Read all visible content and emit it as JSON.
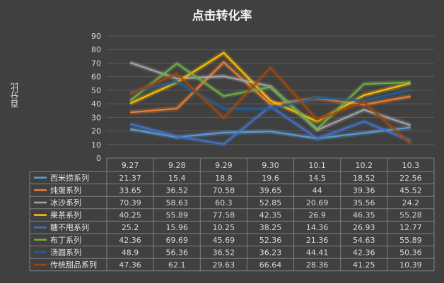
{
  "chart_data": {
    "type": "line",
    "title": "点击转化率",
    "ylabel": "百分比",
    "xlabel": "",
    "ylim": [
      0,
      90
    ],
    "ytick_step": 10,
    "grid": true,
    "legend": "data-table-bottom",
    "categories": [
      "9.27",
      "9.28",
      "9.29",
      "9.30",
      "10.1",
      "10.2",
      "10.3"
    ],
    "series": [
      {
        "name": "西米捞系列",
        "color": "#5b9bd5",
        "values": [
          21.37,
          15.4,
          18.8,
          19.6,
          14.5,
          18.52,
          22.56
        ]
      },
      {
        "name": "炖蛋系列",
        "color": "#ed7d31",
        "values": [
          33.65,
          36.52,
          70.58,
          39.65,
          44,
          39.36,
          45.52
        ]
      },
      {
        "name": "冰沙系列",
        "color": "#a5a5a5",
        "values": [
          70.39,
          58.63,
          60.3,
          52.85,
          20.69,
          35.56,
          24.2
        ]
      },
      {
        "name": "果茶系列",
        "color": "#ffc000",
        "values": [
          40.25,
          55.89,
          77.58,
          42.35,
          26.9,
          46.35,
          55.28
        ]
      },
      {
        "name": "糖不甩系列",
        "color": "#4472c4",
        "values": [
          25.2,
          15.96,
          10.25,
          38.25,
          14.36,
          26.93,
          12.77
        ]
      },
      {
        "name": "布丁系列",
        "color": "#70ad47",
        "values": [
          42.36,
          69.69,
          45.69,
          52.36,
          21.36,
          54.63,
          55.89
        ]
      },
      {
        "name": "汤圆系列",
        "color": "#255e91",
        "values": [
          48.9,
          56.36,
          36.52,
          36.23,
          44.41,
          42.36,
          50.36
        ]
      },
      {
        "name": "传统甜品系列",
        "color": "#9e480e",
        "values": [
          47.36,
          62.1,
          29.63,
          66.64,
          28.36,
          41.25,
          10.39
        ]
      }
    ]
  }
}
